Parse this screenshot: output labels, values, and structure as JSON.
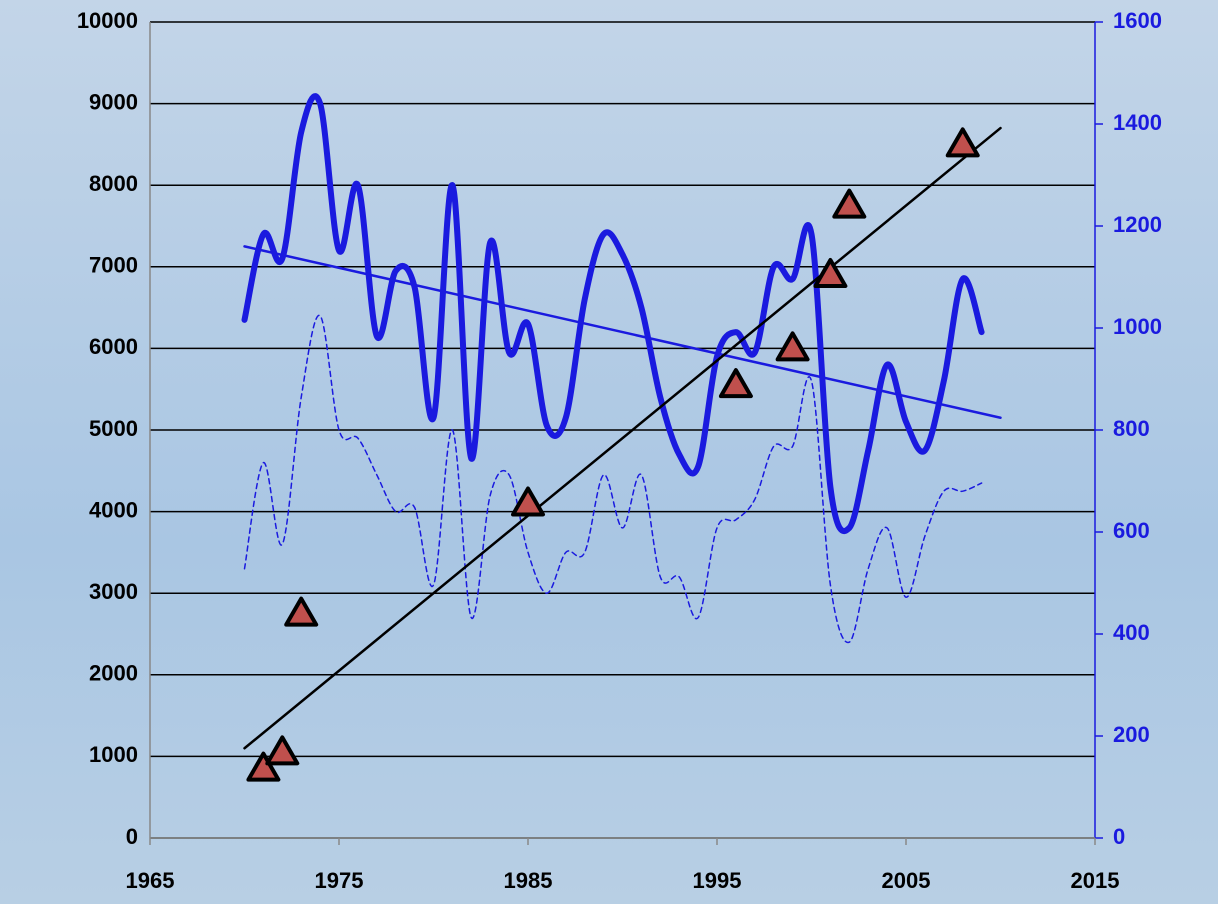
{
  "chart_data": {
    "type": "line",
    "xlim": [
      1965,
      2015
    ],
    "xticks": [
      1965,
      1975,
      1985,
      1995,
      2005,
      2015
    ],
    "ylim": [
      0,
      10000
    ],
    "yticks": [
      0,
      1000,
      2000,
      3000,
      4000,
      5000,
      6000,
      7000,
      8000,
      9000,
      10000
    ],
    "y2lim": [
      0,
      1600
    ],
    "y2ticks": [
      0,
      200,
      400,
      600,
      800,
      1000,
      1200,
      1400,
      1600
    ],
    "grid": true,
    "series": [
      {
        "color": "#1a1adf",
        "axis": "y2",
        "style": "thick",
        "x": [
          1970,
          1971,
          1972,
          1973,
          1974,
          1975,
          1976,
          1977,
          1978,
          1979,
          1980,
          1981,
          1982,
          1983,
          1984,
          1985,
          1986,
          1987,
          1988,
          1989,
          1990,
          1991,
          1992,
          1993,
          1994,
          1995,
          1996,
          1997,
          1998,
          1999,
          2000,
          2001,
          2002,
          2003,
          2004,
          2005,
          2006,
          2007,
          2008,
          2009
        ],
        "values": [
          1016,
          1184,
          1136,
          1384,
          1440,
          1152,
          1280,
          984,
          1112,
          1080,
          824,
          1280,
          744,
          1168,
          952,
          1008,
          808,
          824,
          1056,
          1184,
          1144,
          1040,
          864,
          752,
          728,
          944,
          992,
          952,
          1120,
          1096,
          1184,
          688,
          608,
          760,
          928,
          816,
          760,
          896,
          1096,
          992
        ]
      },
      {
        "color": "#1a1adf",
        "axis": "y2",
        "style": "dashed",
        "x": [
          1970,
          1971,
          1972,
          1973,
          1974,
          1975,
          1976,
          1977,
          1978,
          1979,
          1980,
          1981,
          1982,
          1983,
          1984,
          1985,
          1986,
          1987,
          1988,
          1989,
          1990,
          1991,
          1992,
          1993,
          1994,
          1995,
          1996,
          1997,
          1998,
          1999,
          2000,
          2001,
          2002,
          2003,
          2004,
          2005,
          2006,
          2007,
          2008,
          2009
        ],
        "values": [
          528,
          736,
          576,
          864,
          1024,
          800,
          784,
          712,
          640,
          648,
          496,
          800,
          432,
          672,
          712,
          560,
          480,
          560,
          560,
          712,
          608,
          712,
          512,
          512,
          432,
          608,
          624,
          664,
          768,
          768,
          896,
          496,
          384,
          528,
          608,
          472,
          592,
          680,
          680,
          696
        ]
      },
      {
        "color": "#1a1adf",
        "axis": "y2",
        "style": "trend",
        "x": [
          1970,
          2010
        ],
        "values": [
          1160,
          824
        ]
      },
      {
        "color": "#000000",
        "axis": "y",
        "style": "trend",
        "x": [
          1970,
          2010
        ],
        "values": [
          1100,
          8700
        ]
      },
      {
        "color": "#c0504d",
        "axis": "y",
        "style": "markers",
        "x": [
          1971,
          1972,
          1973,
          1985,
          1996,
          1999,
          2001,
          2002,
          2008
        ],
        "values": [
          850,
          1050,
          2750,
          4100,
          5550,
          6000,
          6900,
          7750,
          8500
        ]
      }
    ]
  }
}
